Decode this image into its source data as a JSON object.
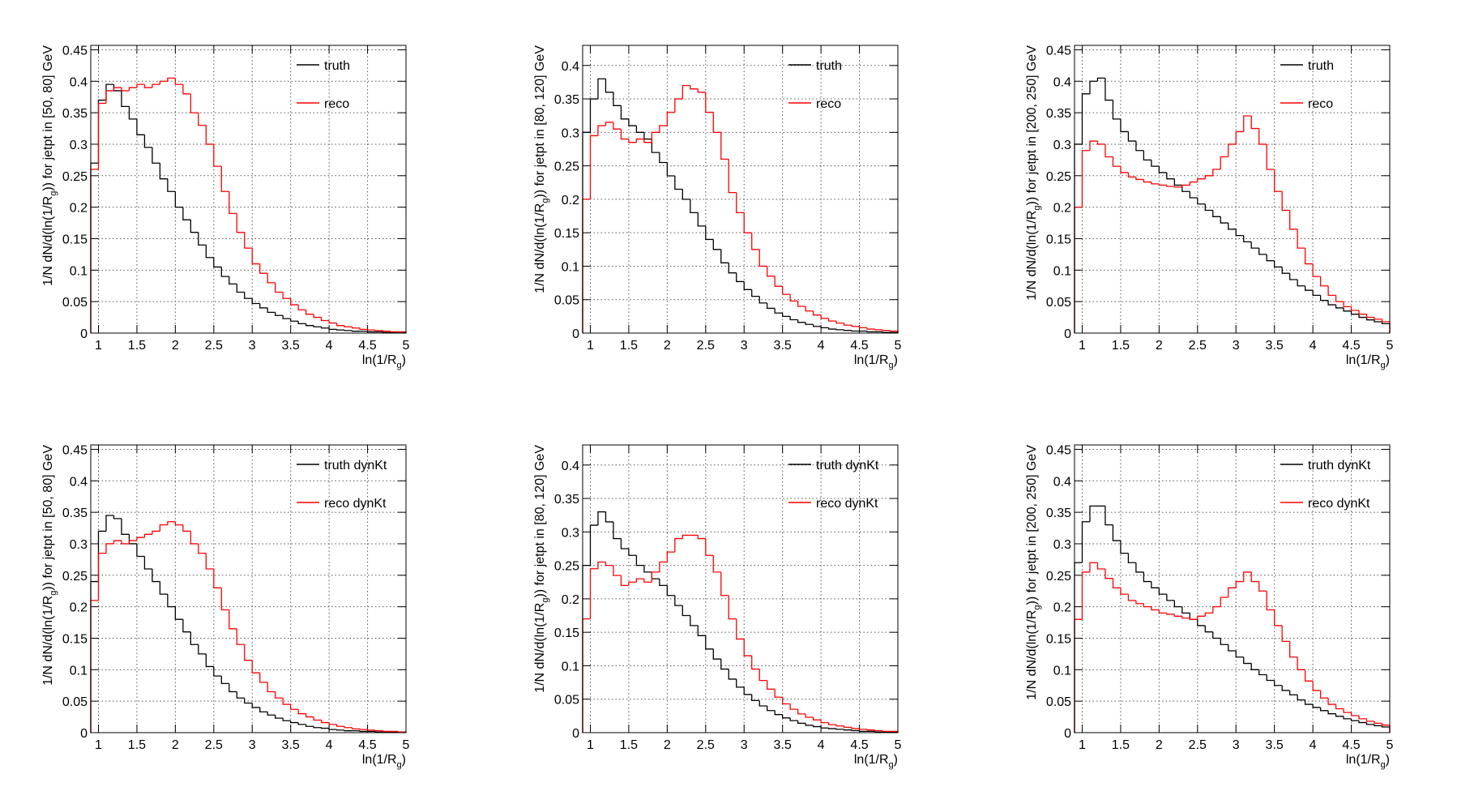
{
  "chart_data": [
    {
      "type": "histogram",
      "ylabel": "1/N dN/d(ln(1/R_g)) for jetpt in [50, 80] GeV",
      "xlabel": "ln(1/R_g)",
      "bins": [
        0.9,
        1.0,
        1.1,
        1.2,
        1.3,
        1.4,
        1.5,
        1.6,
        1.7,
        1.8,
        1.9,
        2.0,
        2.1,
        2.2,
        2.3,
        2.4,
        2.5,
        2.6,
        2.7,
        2.8,
        2.9,
        3.0,
        3.1,
        3.2,
        3.3,
        3.4,
        3.5,
        3.6,
        3.7,
        3.8,
        3.9,
        4.0,
        4.1,
        4.2,
        4.3,
        4.4,
        4.5,
        4.6,
        4.7,
        4.8,
        4.9,
        5.0
      ],
      "xlim": [
        0.9,
        5
      ],
      "xticks": [
        1,
        1.5,
        2,
        2.5,
        3,
        3.5,
        4,
        4.5,
        5
      ],
      "ylim": [
        0,
        0.457
      ],
      "yticks": [
        0,
        0.05,
        0.1,
        0.15,
        0.2,
        0.25,
        0.3,
        0.35,
        0.4,
        0.45
      ],
      "grid": true,
      "series": [
        {
          "name": "truth",
          "color": "#000000",
          "values": [
            0.27,
            0.37,
            0.395,
            0.385,
            0.36,
            0.34,
            0.315,
            0.295,
            0.27,
            0.245,
            0.225,
            0.2,
            0.18,
            0.16,
            0.14,
            0.12,
            0.105,
            0.09,
            0.078,
            0.065,
            0.055,
            0.047,
            0.04,
            0.033,
            0.028,
            0.023,
            0.019,
            0.015,
            0.012,
            0.01,
            0.008,
            0.006,
            0.005,
            0.004,
            0.003,
            0.003,
            0.002,
            0.002,
            0.001,
            0.001,
            0.001
          ]
        },
        {
          "name": "reco",
          "color": "#ff0000",
          "values": [
            0.26,
            0.365,
            0.385,
            0.39,
            0.385,
            0.39,
            0.395,
            0.39,
            0.395,
            0.4,
            0.405,
            0.395,
            0.38,
            0.35,
            0.33,
            0.3,
            0.265,
            0.225,
            0.19,
            0.16,
            0.135,
            0.11,
            0.095,
            0.08,
            0.065,
            0.055,
            0.045,
            0.037,
            0.03,
            0.025,
            0.02,
            0.016,
            0.012,
            0.01,
            0.008,
            0.006,
            0.005,
            0.004,
            0.003,
            0.002,
            0.002
          ]
        }
      ]
    },
    {
      "type": "histogram",
      "ylabel": "1/N dN/d(ln(1/R_g)) for jetpt in [80, 120] GeV",
      "xlabel": "ln(1/R_g)",
      "bins": [
        0.9,
        1.0,
        1.1,
        1.2,
        1.3,
        1.4,
        1.5,
        1.6,
        1.7,
        1.8,
        1.9,
        2.0,
        2.1,
        2.2,
        2.3,
        2.4,
        2.5,
        2.6,
        2.7,
        2.8,
        2.9,
        3.0,
        3.1,
        3.2,
        3.3,
        3.4,
        3.5,
        3.6,
        3.7,
        3.8,
        3.9,
        4.0,
        4.1,
        4.2,
        4.3,
        4.4,
        4.5,
        4.6,
        4.7,
        4.8,
        4.9,
        5.0
      ],
      "xlim": [
        0.9,
        5
      ],
      "xticks": [
        1,
        1.5,
        2,
        2.5,
        3,
        3.5,
        4,
        4.5,
        5
      ],
      "ylim": [
        0,
        0.43
      ],
      "yticks": [
        0,
        0.05,
        0.1,
        0.15,
        0.2,
        0.25,
        0.3,
        0.35,
        0.4
      ],
      "grid": true,
      "series": [
        {
          "name": "truth",
          "color": "#000000",
          "values": [
            0.3,
            0.35,
            0.38,
            0.36,
            0.34,
            0.32,
            0.31,
            0.3,
            0.29,
            0.27,
            0.255,
            0.235,
            0.215,
            0.2,
            0.18,
            0.16,
            0.14,
            0.125,
            0.105,
            0.09,
            0.077,
            0.065,
            0.055,
            0.045,
            0.037,
            0.03,
            0.025,
            0.02,
            0.016,
            0.013,
            0.01,
            0.008,
            0.006,
            0.005,
            0.004,
            0.003,
            0.003,
            0.002,
            0.002,
            0.001,
            0.001
          ]
        },
        {
          "name": "reco",
          "color": "#ff0000",
          "values": [
            0.2,
            0.295,
            0.31,
            0.315,
            0.305,
            0.29,
            0.285,
            0.29,
            0.285,
            0.3,
            0.31,
            0.33,
            0.35,
            0.37,
            0.365,
            0.36,
            0.33,
            0.3,
            0.26,
            0.21,
            0.18,
            0.15,
            0.125,
            0.1,
            0.085,
            0.07,
            0.058,
            0.048,
            0.04,
            0.033,
            0.027,
            0.022,
            0.018,
            0.015,
            0.012,
            0.01,
            0.008,
            0.006,
            0.005,
            0.004,
            0.003
          ]
        }
      ]
    },
    {
      "type": "histogram",
      "ylabel": "1/N dN/d(ln(1/R_g)) for jetpt in [200, 250] GeV",
      "xlabel": "ln(1/R_g)",
      "bins": [
        0.9,
        1.0,
        1.1,
        1.2,
        1.3,
        1.4,
        1.5,
        1.6,
        1.7,
        1.8,
        1.9,
        2.0,
        2.1,
        2.2,
        2.3,
        2.4,
        2.5,
        2.6,
        2.7,
        2.8,
        2.9,
        3.0,
        3.1,
        3.2,
        3.3,
        3.4,
        3.5,
        3.6,
        3.7,
        3.8,
        3.9,
        4.0,
        4.1,
        4.2,
        4.3,
        4.4,
        4.5,
        4.6,
        4.7,
        4.8,
        4.9,
        5.0
      ],
      "xlim": [
        0.9,
        5
      ],
      "xticks": [
        1,
        1.5,
        2,
        2.5,
        3,
        3.5,
        4,
        4.5,
        5
      ],
      "ylim": [
        0,
        0.457
      ],
      "yticks": [
        0,
        0.05,
        0.1,
        0.15,
        0.2,
        0.25,
        0.3,
        0.35,
        0.4,
        0.45
      ],
      "grid": true,
      "series": [
        {
          "name": "truth",
          "color": "#000000",
          "values": [
            0.3,
            0.38,
            0.4,
            0.405,
            0.37,
            0.34,
            0.32,
            0.305,
            0.29,
            0.275,
            0.265,
            0.255,
            0.245,
            0.235,
            0.225,
            0.215,
            0.205,
            0.195,
            0.185,
            0.175,
            0.165,
            0.155,
            0.145,
            0.135,
            0.125,
            0.115,
            0.105,
            0.095,
            0.085,
            0.075,
            0.068,
            0.06,
            0.052,
            0.045,
            0.04,
            0.035,
            0.03,
            0.025,
            0.021,
            0.018,
            0.015
          ]
        },
        {
          "name": "reco",
          "color": "#ff0000",
          "values": [
            0.2,
            0.29,
            0.305,
            0.3,
            0.28,
            0.265,
            0.255,
            0.248,
            0.244,
            0.24,
            0.237,
            0.235,
            0.233,
            0.232,
            0.235,
            0.24,
            0.245,
            0.25,
            0.26,
            0.28,
            0.3,
            0.32,
            0.345,
            0.325,
            0.3,
            0.26,
            0.225,
            0.195,
            0.165,
            0.135,
            0.11,
            0.09,
            0.075,
            0.06,
            0.05,
            0.042,
            0.036,
            0.03,
            0.025,
            0.022,
            0.018
          ]
        }
      ]
    },
    {
      "type": "histogram",
      "ylabel": "1/N dN/d(ln(1/R_g)) for jetpt in [50, 80] GeV",
      "xlabel": "ln(1/R_g)",
      "bins": [
        0.9,
        1.0,
        1.1,
        1.2,
        1.3,
        1.4,
        1.5,
        1.6,
        1.7,
        1.8,
        1.9,
        2.0,
        2.1,
        2.2,
        2.3,
        2.4,
        2.5,
        2.6,
        2.7,
        2.8,
        2.9,
        3.0,
        3.1,
        3.2,
        3.3,
        3.4,
        3.5,
        3.6,
        3.7,
        3.8,
        3.9,
        4.0,
        4.1,
        4.2,
        4.3,
        4.4,
        4.5,
        4.6,
        4.7,
        4.8,
        4.9,
        5.0
      ],
      "xlim": [
        0.9,
        5
      ],
      "xticks": [
        1,
        1.5,
        2,
        2.5,
        3,
        3.5,
        4,
        4.5,
        5
      ],
      "ylim": [
        0,
        0.457
      ],
      "yticks": [
        0,
        0.05,
        0.1,
        0.15,
        0.2,
        0.25,
        0.3,
        0.35,
        0.4,
        0.45
      ],
      "grid": true,
      "series": [
        {
          "name": "truth dynKt",
          "color": "#000000",
          "values": [
            0.24,
            0.32,
            0.345,
            0.34,
            0.315,
            0.3,
            0.28,
            0.26,
            0.24,
            0.22,
            0.2,
            0.18,
            0.16,
            0.14,
            0.125,
            0.105,
            0.09,
            0.078,
            0.065,
            0.055,
            0.047,
            0.04,
            0.033,
            0.028,
            0.023,
            0.019,
            0.016,
            0.013,
            0.01,
            0.008,
            0.007,
            0.005,
            0.004,
            0.003,
            0.003,
            0.002,
            0.002,
            0.001,
            0.001,
            0.001,
            0.001
          ]
        },
        {
          "name": "reco dynKt",
          "color": "#ff0000",
          "values": [
            0.21,
            0.285,
            0.3,
            0.305,
            0.3,
            0.305,
            0.31,
            0.315,
            0.32,
            0.33,
            0.335,
            0.33,
            0.32,
            0.3,
            0.285,
            0.26,
            0.23,
            0.195,
            0.165,
            0.14,
            0.115,
            0.095,
            0.08,
            0.065,
            0.055,
            0.045,
            0.037,
            0.03,
            0.025,
            0.02,
            0.016,
            0.013,
            0.01,
            0.008,
            0.006,
            0.005,
            0.004,
            0.003,
            0.002,
            0.002,
            0.001
          ]
        }
      ]
    },
    {
      "type": "histogram",
      "ylabel": "1/N dN/d(ln(1/R_g)) for jetpt in [80, 120] GeV",
      "xlabel": "ln(1/R_g)",
      "bins": [
        0.9,
        1.0,
        1.1,
        1.2,
        1.3,
        1.4,
        1.5,
        1.6,
        1.7,
        1.8,
        1.9,
        2.0,
        2.1,
        2.2,
        2.3,
        2.4,
        2.5,
        2.6,
        2.7,
        2.8,
        2.9,
        3.0,
        3.1,
        3.2,
        3.3,
        3.4,
        3.5,
        3.6,
        3.7,
        3.8,
        3.9,
        4.0,
        4.1,
        4.2,
        4.3,
        4.4,
        4.5,
        4.6,
        4.7,
        4.8,
        4.9,
        5.0
      ],
      "xlim": [
        0.9,
        5
      ],
      "xticks": [
        1,
        1.5,
        2,
        2.5,
        3,
        3.5,
        4,
        4.5,
        5
      ],
      "ylim": [
        0,
        0.43
      ],
      "yticks": [
        0,
        0.05,
        0.1,
        0.15,
        0.2,
        0.25,
        0.3,
        0.35,
        0.4
      ],
      "grid": true,
      "series": [
        {
          "name": "truth dynKt",
          "color": "#000000",
          "values": [
            0.25,
            0.31,
            0.33,
            0.315,
            0.29,
            0.275,
            0.265,
            0.25,
            0.24,
            0.23,
            0.22,
            0.205,
            0.19,
            0.175,
            0.16,
            0.145,
            0.125,
            0.11,
            0.095,
            0.08,
            0.068,
            0.057,
            0.048,
            0.04,
            0.033,
            0.027,
            0.022,
            0.018,
            0.014,
            0.011,
            0.009,
            0.007,
            0.006,
            0.005,
            0.004,
            0.003,
            0.002,
            0.002,
            0.001,
            0.001,
            0.001
          ]
        },
        {
          "name": "reco dynKt",
          "color": "#ff0000",
          "values": [
            0.17,
            0.245,
            0.255,
            0.25,
            0.235,
            0.22,
            0.225,
            0.23,
            0.225,
            0.24,
            0.255,
            0.27,
            0.29,
            0.295,
            0.295,
            0.29,
            0.265,
            0.24,
            0.205,
            0.17,
            0.14,
            0.115,
            0.095,
            0.078,
            0.065,
            0.053,
            0.043,
            0.035,
            0.028,
            0.023,
            0.019,
            0.015,
            0.012,
            0.01,
            0.008,
            0.006,
            0.005,
            0.004,
            0.003,
            0.002,
            0.002
          ]
        }
      ]
    },
    {
      "type": "histogram",
      "ylabel": "1/N dN/d(ln(1/R_g)) for jetpt in [200, 250] GeV",
      "xlabel": "ln(1/R_g)",
      "bins": [
        0.9,
        1.0,
        1.1,
        1.2,
        1.3,
        1.4,
        1.5,
        1.6,
        1.7,
        1.8,
        1.9,
        2.0,
        2.1,
        2.2,
        2.3,
        2.4,
        2.5,
        2.6,
        2.7,
        2.8,
        2.9,
        3.0,
        3.1,
        3.2,
        3.3,
        3.4,
        3.5,
        3.6,
        3.7,
        3.8,
        3.9,
        4.0,
        4.1,
        4.2,
        4.3,
        4.4,
        4.5,
        4.6,
        4.7,
        4.8,
        4.9,
        5.0
      ],
      "xlim": [
        0.9,
        5
      ],
      "xticks": [
        1,
        1.5,
        2,
        2.5,
        3,
        3.5,
        4,
        4.5,
        5
      ],
      "ylim": [
        0,
        0.457
      ],
      "yticks": [
        0,
        0.05,
        0.1,
        0.15,
        0.2,
        0.25,
        0.3,
        0.35,
        0.4,
        0.45
      ],
      "grid": true,
      "series": [
        {
          "name": "truth dynKt",
          "color": "#000000",
          "values": [
            0.27,
            0.335,
            0.36,
            0.36,
            0.33,
            0.305,
            0.285,
            0.27,
            0.255,
            0.24,
            0.23,
            0.22,
            0.21,
            0.2,
            0.19,
            0.18,
            0.17,
            0.16,
            0.15,
            0.14,
            0.13,
            0.12,
            0.11,
            0.1,
            0.092,
            0.083,
            0.075,
            0.067,
            0.06,
            0.052,
            0.045,
            0.04,
            0.035,
            0.03,
            0.026,
            0.022,
            0.019,
            0.016,
            0.013,
            0.011,
            0.009
          ]
        },
        {
          "name": "reco dynKt",
          "color": "#ff0000",
          "values": [
            0.18,
            0.255,
            0.27,
            0.26,
            0.245,
            0.23,
            0.22,
            0.21,
            0.205,
            0.2,
            0.195,
            0.19,
            0.188,
            0.185,
            0.182,
            0.18,
            0.185,
            0.19,
            0.2,
            0.215,
            0.23,
            0.24,
            0.255,
            0.24,
            0.225,
            0.195,
            0.17,
            0.145,
            0.12,
            0.1,
            0.082,
            0.067,
            0.055,
            0.045,
            0.038,
            0.032,
            0.027,
            0.022,
            0.018,
            0.015,
            0.012
          ]
        }
      ]
    }
  ]
}
